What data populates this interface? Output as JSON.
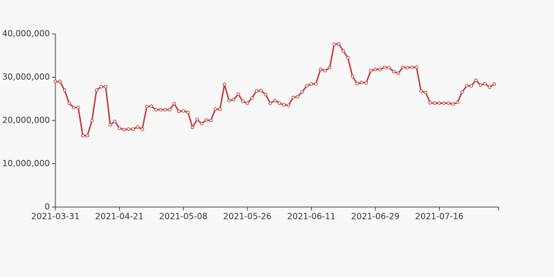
{
  "chart_data": {
    "type": "line",
    "categories": [
      "2021-03-31",
      null,
      null,
      null,
      null,
      null,
      null,
      null,
      null,
      null,
      null,
      null,
      null,
      null,
      "2021-04-21",
      null,
      null,
      null,
      null,
      null,
      null,
      null,
      null,
      null,
      null,
      null,
      null,
      null,
      "2021-05-08",
      null,
      null,
      null,
      null,
      null,
      null,
      null,
      null,
      null,
      null,
      null,
      null,
      null,
      "2021-05-26",
      null,
      null,
      null,
      null,
      null,
      null,
      null,
      null,
      null,
      null,
      null,
      null,
      null,
      "2021-06-11",
      null,
      null,
      null,
      null,
      null,
      null,
      null,
      null,
      null,
      null,
      null,
      null,
      null,
      "2021-06-29",
      null,
      null,
      null,
      null,
      null,
      null,
      null,
      null,
      null,
      null,
      null,
      null,
      null,
      "2021-07-16",
      null,
      null,
      null,
      null,
      null,
      null,
      null,
      null,
      null,
      null,
      null,
      null
    ],
    "series": [
      {
        "color": "#c23531",
        "values": [
          29000000,
          29000000,
          27000000,
          24000000,
          23000000,
          23000000,
          16500000,
          16500000,
          20000000,
          27000000,
          27800000,
          27800000,
          19000000,
          19800000,
          18200000,
          17900000,
          18000000,
          18000000,
          18500000,
          18000000,
          23200000,
          23300000,
          22500000,
          22500000,
          22500000,
          22500000,
          23900000,
          22100000,
          22200000,
          21900000,
          18400000,
          20200000,
          19300000,
          20100000,
          20000000,
          22600000,
          22600000,
          28300000,
          24600000,
          24800000,
          26100000,
          24400000,
          24000000,
          25200000,
          26800000,
          26900000,
          26000000,
          24000000,
          24600000,
          24000000,
          23600000,
          23500000,
          25300000,
          25500000,
          26600000,
          28000000,
          28400000,
          28500000,
          31800000,
          31500000,
          32200000,
          37600000,
          37700000,
          36000000,
          34500000,
          30200000,
          28500000,
          28800000,
          28700000,
          31500000,
          31800000,
          31800000,
          32300000,
          32200000,
          31300000,
          30900000,
          32300000,
          32200000,
          32300000,
          32300000,
          26800000,
          26500000,
          24100000,
          24000000,
          24000000,
          24000000,
          24000000,
          23800000,
          24200000,
          26600000,
          28000000,
          28000000,
          29300000,
          28200000,
          28500000,
          27700000,
          28400000
        ]
      }
    ],
    "ylim": [
      0,
      40000000
    ],
    "yticks": [
      0,
      {
        "value": 10000000,
        "label": "10,000,000"
      },
      {
        "value": 20000000,
        "label": "20,000,000"
      },
      {
        "value": 30000000,
        "label": "30,000,000"
      },
      {
        "value": 40000000,
        "label": "40,000,000"
      }
    ],
    "grid": false
  }
}
